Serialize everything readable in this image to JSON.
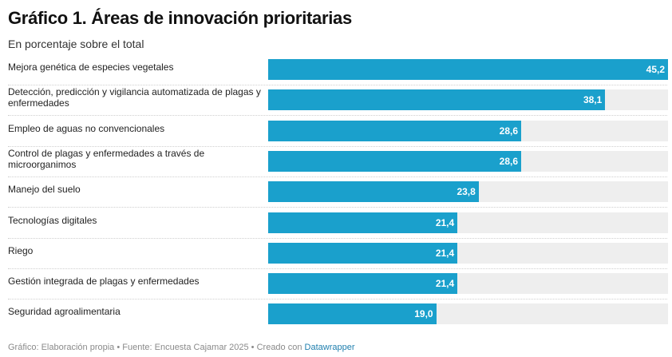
{
  "chart_data": {
    "type": "bar",
    "orientation": "horizontal",
    "title": "Gráfico 1. Áreas de innovación prioritarias",
    "subtitle": "En porcentaje sobre el total",
    "categories": [
      "Mejora genética de especies vegetales",
      "Detección, predicción y vigilancia automatizada de plagas y enfermedades",
      "Empleo de aguas no convencionales",
      "Control de plagas y enfermedades a través de microorganimos",
      "Manejo del suelo",
      "Tecnologías digitales",
      "Riego",
      "Gestión integrada de plagas y enfermedades",
      "Seguridad agroalimentaria"
    ],
    "values": [
      45.2,
      38.1,
      28.6,
      28.6,
      23.8,
      21.4,
      21.4,
      21.4,
      19.0
    ],
    "value_labels": [
      "45,2",
      "38,1",
      "28,6",
      "28,6",
      "23,8",
      "21,4",
      "21,4",
      "21,4",
      "19,0"
    ],
    "xlim": [
      0,
      45.2
    ],
    "bar_color": "#1aa0cc",
    "background_bar_color": "#eeeeee"
  },
  "footer": {
    "text": "Gráfico: Elaboración propia • Fuente: Encuesta Cajamar 2025 • Creado con ",
    "link": "Datawrapper"
  }
}
